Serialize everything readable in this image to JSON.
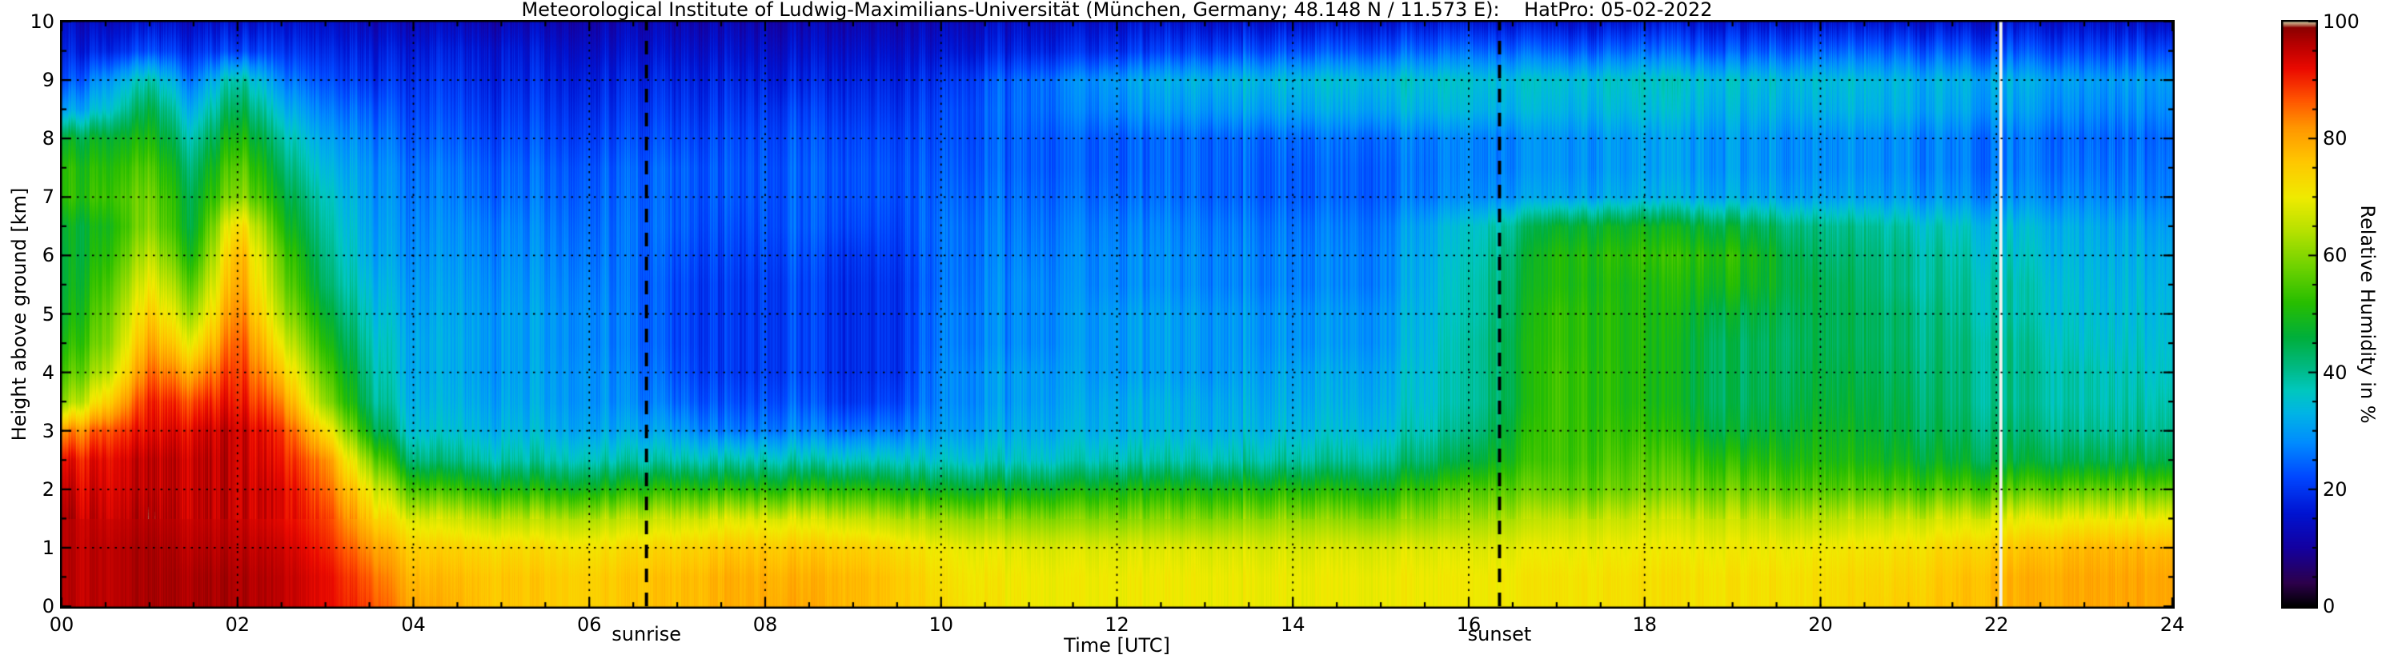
{
  "title": "Meteorological Institute of Ludwig-Maximilians-Universität (München, Germany; 48.148 N / 11.573 E):    HatPro: 05-02-2022",
  "chart_data": {
    "type": "heatmap",
    "title": "Meteorological Institute of Ludwig-Maximilians-Universität (München, Germany; 48.148 N / 11.573 E):    HatPro: 05-02-2022",
    "xlabel": "Time [UTC]",
    "ylabel": "Height above ground [km]",
    "colorbar_label": "Relative Humidity in %",
    "xlim": [
      0,
      24
    ],
    "ylim": [
      0,
      10
    ],
    "zlim": [
      0,
      100
    ],
    "x_tick_labels": [
      "00",
      "02",
      "04",
      "06",
      "08",
      "10",
      "12",
      "14",
      "16",
      "18",
      "20",
      "22",
      "24"
    ],
    "x_tick_values": [
      0,
      2,
      4,
      6,
      8,
      10,
      12,
      14,
      16,
      18,
      20,
      22,
      24
    ],
    "y_tick_labels": [
      "0",
      "1",
      "2",
      "3",
      "4",
      "5",
      "6",
      "7",
      "8",
      "9",
      "10"
    ],
    "y_tick_values": [
      0,
      1,
      2,
      3,
      4,
      5,
      6,
      7,
      8,
      9,
      10
    ],
    "colorbar_tick_labels": [
      "0",
      "20",
      "40",
      "60",
      "80",
      "100"
    ],
    "colorbar_tick_values": [
      0,
      20,
      40,
      60,
      80,
      100
    ],
    "grid_style": {
      "x_step_hours": 2,
      "y_step_km": 1,
      "line": "dotted"
    },
    "annotations": {
      "sunrise": {
        "label": "sunrise",
        "time_utc": 6.65
      },
      "sunset": {
        "label": "sunset",
        "time_utc": 16.35
      },
      "missing_data_line_utc": 22.05
    },
    "colormap_stops": [
      [
        0,
        "#000000"
      ],
      [
        4,
        "#2d004b"
      ],
      [
        10,
        "#1400a0"
      ],
      [
        16,
        "#0014d2"
      ],
      [
        22,
        "#0046ff"
      ],
      [
        28,
        "#008cff"
      ],
      [
        33,
        "#00b4e6"
      ],
      [
        37,
        "#00c8be"
      ],
      [
        41,
        "#00b982"
      ],
      [
        46,
        "#00af3c"
      ],
      [
        52,
        "#28be00"
      ],
      [
        58,
        "#6ed200"
      ],
      [
        64,
        "#b4e100"
      ],
      [
        70,
        "#f0eb00"
      ],
      [
        76,
        "#ffc800"
      ],
      [
        82,
        "#ff9600"
      ],
      [
        87,
        "#ff5000"
      ],
      [
        92,
        "#eb0a00"
      ],
      [
        96,
        "#b90000"
      ],
      [
        99,
        "#8c0000"
      ],
      [
        100,
        "#d7cda0"
      ]
    ],
    "grid": {
      "times_utc": [
        0,
        0.5,
        1,
        1.5,
        2,
        2.5,
        3,
        3.5,
        4,
        5,
        6,
        7,
        7.6,
        8.3,
        9,
        9.5,
        10,
        11,
        12,
        13,
        14,
        15,
        16,
        16.6,
        17,
        18,
        19,
        20,
        21,
        22,
        23,
        24
      ],
      "heights_km": [
        0,
        0.5,
        1,
        1.5,
        2,
        2.5,
        3,
        3.5,
        4,
        4.5,
        5,
        5.5,
        6,
        6.5,
        7,
        7.5,
        8,
        8.5,
        9,
        9.5,
        10
      ],
      "rh_percent_rows_bottom_to_top": [
        [
          95,
          96,
          97,
          97,
          97,
          95,
          92,
          88,
          80,
          76,
          75,
          77,
          79,
          80,
          78,
          76,
          73,
          70,
          70,
          70,
          70,
          70,
          70,
          71,
          72,
          72,
          72,
          72,
          75,
          78,
          80,
          80
        ],
        [
          95,
          96,
          97,
          97,
          97,
          95,
          92,
          86,
          78,
          76,
          75,
          77,
          79,
          79,
          78,
          76,
          72,
          70,
          70,
          70,
          70,
          70,
          70,
          71,
          72,
          72,
          72,
          72,
          74,
          78,
          80,
          80
        ],
        [
          95,
          96,
          97,
          96,
          96,
          94,
          90,
          82,
          75,
          73,
          72,
          74,
          76,
          76,
          75,
          73,
          70,
          68,
          68,
          68,
          68,
          68,
          68,
          69,
          70,
          70,
          70,
          70,
          72,
          75,
          78,
          78
        ],
        [
          95,
          95,
          96,
          95,
          95,
          92,
          88,
          76,
          68,
          64,
          64,
          66,
          68,
          68,
          66,
          64,
          62,
          60,
          60,
          60,
          62,
          60,
          62,
          64,
          66,
          66,
          66,
          64,
          66,
          68,
          70,
          70
        ],
        [
          93,
          94,
          95,
          95,
          95,
          92,
          85,
          70,
          55,
          50,
          50,
          52,
          52,
          52,
          52,
          50,
          48,
          48,
          50,
          50,
          52,
          50,
          55,
          57,
          58,
          58,
          58,
          55,
          55,
          55,
          57,
          57
        ],
        [
          90,
          93,
          95,
          95,
          95,
          90,
          82,
          60,
          42,
          38,
          38,
          38,
          38,
          38,
          37,
          37,
          36,
          36,
          38,
          38,
          40,
          40,
          45,
          52,
          55,
          55,
          52,
          50,
          48,
          45,
          45,
          45
        ],
        [
          80,
          88,
          92,
          93,
          95,
          88,
          72,
          48,
          35,
          33,
          32,
          30,
          26,
          28,
          26,
          27,
          30,
          32,
          33,
          33,
          35,
          35,
          40,
          50,
          55,
          52,
          46,
          48,
          45,
          42,
          40,
          40
        ],
        [
          58,
          75,
          90,
          88,
          92,
          82,
          60,
          42,
          33,
          31,
          30,
          25,
          22,
          24,
          20,
          22,
          28,
          30,
          32,
          32,
          33,
          33,
          38,
          48,
          55,
          50,
          44,
          46,
          44,
          40,
          38,
          38
        ],
        [
          52,
          65,
          85,
          80,
          90,
          75,
          55,
          40,
          32,
          30,
          30,
          23,
          20,
          22,
          19,
          20,
          28,
          30,
          30,
          30,
          32,
          32,
          38,
          48,
          55,
          50,
          44,
          45,
          43,
          40,
          38,
          36
        ],
        [
          48,
          60,
          80,
          70,
          88,
          68,
          50,
          38,
          32,
          30,
          29,
          22,
          20,
          22,
          19,
          20,
          27,
          28,
          30,
          30,
          30,
          30,
          38,
          48,
          54,
          50,
          44,
          44,
          42,
          40,
          36,
          35
        ],
        [
          45,
          58,
          75,
          62,
          85,
          62,
          46,
          36,
          31,
          30,
          29,
          22,
          20,
          22,
          19,
          20,
          27,
          28,
          30,
          30,
          30,
          30,
          37,
          47,
          54,
          50,
          46,
          44,
          42,
          38,
          35,
          34
        ],
        [
          44,
          55,
          70,
          56,
          82,
          58,
          42,
          34,
          30,
          29,
          28,
          22,
          20,
          22,
          19,
          20,
          26,
          28,
          28,
          28,
          28,
          28,
          37,
          46,
          52,
          50,
          50,
          44,
          40,
          38,
          34,
          33
        ],
        [
          44,
          52,
          65,
          50,
          80,
          55,
          40,
          32,
          29,
          28,
          27,
          23,
          21,
          23,
          20,
          21,
          26,
          27,
          28,
          28,
          28,
          28,
          36,
          45,
          52,
          52,
          52,
          42,
          40,
          36,
          33,
          32
        ],
        [
          45,
          50,
          60,
          46,
          75,
          50,
          38,
          31,
          28,
          27,
          26,
          24,
          22,
          24,
          22,
          22,
          26,
          26,
          27,
          27,
          27,
          27,
          35,
          42,
          48,
          48,
          46,
          40,
          38,
          34,
          32,
          30
        ],
        [
          50,
          54,
          58,
          45,
          62,
          46,
          36,
          30,
          27,
          25,
          25,
          24,
          23,
          24,
          23,
          23,
          25,
          25,
          25,
          25,
          25,
          25,
          28,
          30,
          32,
          32,
          32,
          30,
          30,
          28,
          28,
          27
        ],
        [
          50,
          52,
          55,
          42,
          58,
          42,
          33,
          29,
          26,
          24,
          24,
          24,
          23,
          24,
          23,
          23,
          24,
          24,
          24,
          25,
          25,
          25,
          27,
          28,
          30,
          30,
          30,
          28,
          28,
          26,
          26,
          26
        ],
        [
          45,
          48,
          50,
          38,
          52,
          38,
          30,
          27,
          24,
          22,
          22,
          22,
          22,
          23,
          22,
          22,
          23,
          24,
          24,
          25,
          26,
          26,
          27,
          28,
          30,
          30,
          30,
          28,
          28,
          26,
          25,
          25
        ],
        [
          28,
          36,
          45,
          32,
          46,
          32,
          26,
          24,
          22,
          20,
          20,
          20,
          20,
          21,
          20,
          20,
          22,
          25,
          28,
          30,
          32,
          32,
          33,
          33,
          34,
          34,
          33,
          32,
          32,
          30,
          28,
          28
        ],
        [
          20,
          30,
          38,
          26,
          40,
          26,
          22,
          20,
          20,
          18,
          18,
          18,
          18,
          18,
          18,
          18,
          20,
          25,
          30,
          33,
          35,
          35,
          35,
          35,
          36,
          36,
          35,
          34,
          33,
          32,
          30,
          30
        ],
        [
          16,
          19,
          22,
          19,
          22,
          19,
          18,
          17,
          17,
          16,
          15,
          15,
          15,
          15,
          15,
          15,
          16,
          18,
          20,
          22,
          24,
          24,
          25,
          25,
          25,
          25,
          24,
          24,
          24,
          23,
          22,
          22
        ],
        [
          13,
          14,
          15,
          14,
          15,
          14,
          14,
          13,
          13,
          12,
          12,
          12,
          12,
          12,
          12,
          12,
          13,
          14,
          15,
          15,
          16,
          16,
          16,
          16,
          16,
          16,
          16,
          15,
          15,
          15,
          15,
          14
        ]
      ]
    }
  }
}
